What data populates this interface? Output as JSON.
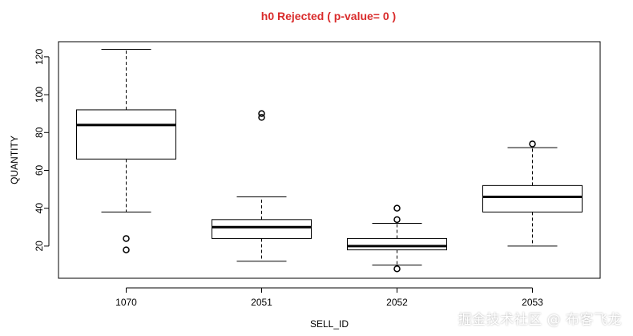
{
  "chart_data": {
    "type": "boxplot",
    "title": "h0 Rejected ( p-value= 0 )",
    "title_color": "#d92b2b",
    "xlabel": "SELL_ID",
    "ylabel": "QUANTITY",
    "categories": [
      "1070",
      "2051",
      "2052",
      "2053"
    ],
    "ylim": [
      3,
      128
    ],
    "yticks": [
      20,
      40,
      60,
      80,
      100,
      120
    ],
    "boxes": [
      {
        "category": "1070",
        "whisker_low": 38,
        "q1": 66,
        "median": 84,
        "q3": 92,
        "whisker_high": 124,
        "outliers": [
          24,
          18
        ]
      },
      {
        "category": "2051",
        "whisker_low": 12,
        "q1": 24,
        "median": 30,
        "q3": 34,
        "whisker_high": 46,
        "outliers": [
          88,
          90
        ]
      },
      {
        "category": "2052",
        "whisker_low": 10,
        "q1": 18,
        "median": 20,
        "q3": 24,
        "whisker_high": 32,
        "outliers": [
          40,
          34,
          8
        ]
      },
      {
        "category": "2053",
        "whisker_low": 20,
        "q1": 38,
        "median": 46,
        "q3": 52,
        "whisker_high": 72,
        "outliers": [
          74
        ]
      }
    ]
  },
  "watermark": "掘金技术社区 @ 布客飞龙"
}
